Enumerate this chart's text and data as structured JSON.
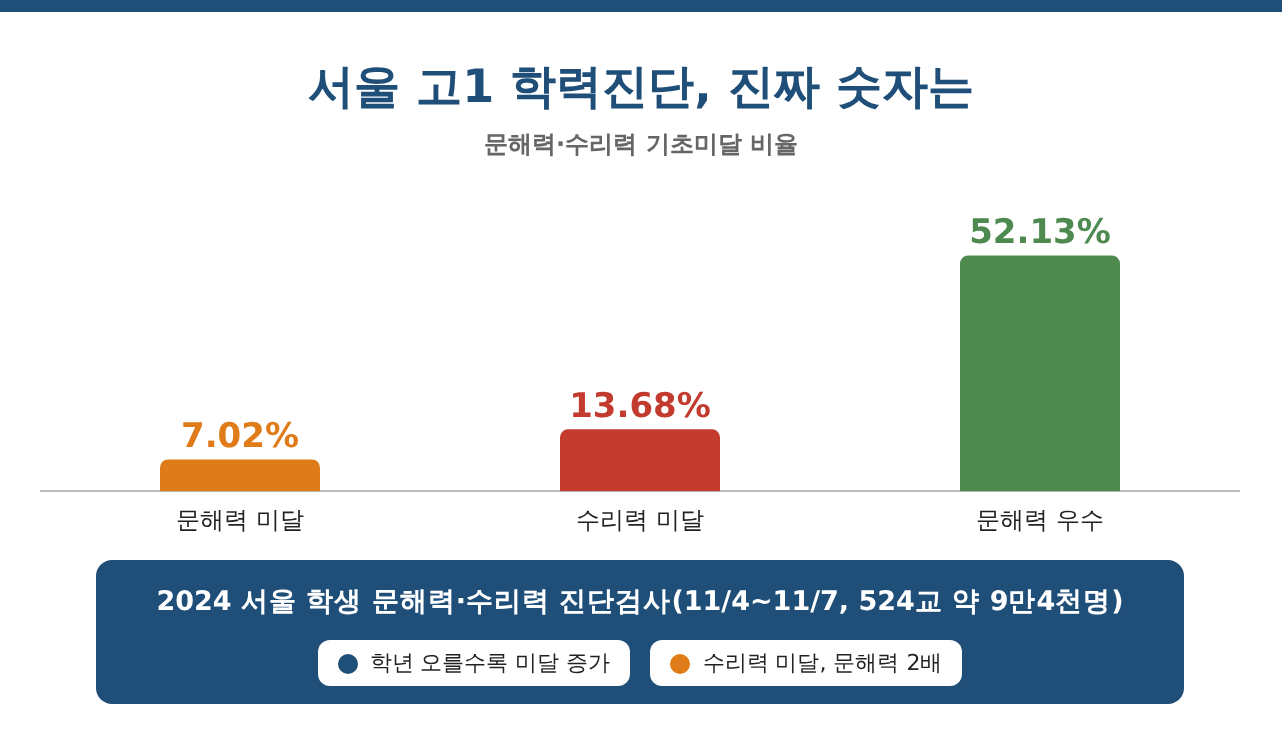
{
  "chart_data": {
    "type": "bar",
    "title": "서울 고1 학력진단, 진짜 숫자는",
    "subtitle": "문해력·수리력 기초미달 비율",
    "categories": [
      "문해력 미달",
      "수리력 미달",
      "문해력 우수"
    ],
    "values": [
      7.02,
      13.68,
      52.13
    ],
    "colors": [
      "#e07b1a",
      "#c23b2e",
      "#4e8a4f"
    ],
    "value_labels": [
      "7.02%",
      "13.68%",
      "52.13%"
    ],
    "annotations": [
      "2024 서울 학생 문해력·수리력 진단검사(11/4~11/7, 524교 약 9만4천명)",
      "학년 오를수록 미달 증가",
      "수리력 미달, 문해력 2배"
    ],
    "grid": false,
    "legend": false
  }
}
